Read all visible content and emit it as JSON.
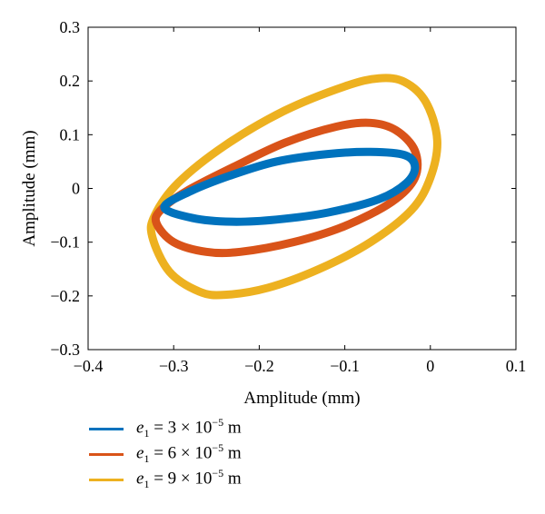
{
  "chart_data": {
    "type": "line",
    "title": "",
    "xlabel": "Amplitude (mm)",
    "ylabel": "Amplitude (mm)",
    "xlim": [
      -0.4,
      0.1
    ],
    "ylim": [
      -0.3,
      0.3
    ],
    "xticks": [
      -0.4,
      -0.3,
      -0.2,
      -0.1,
      0,
      0.1
    ],
    "yticks": [
      -0.3,
      -0.2,
      -0.1,
      0,
      0.1,
      0.2,
      0.3
    ],
    "xtick_labels": [
      "−0.4",
      "−0.3",
      "−0.2",
      "−0.1",
      "0",
      "0.1"
    ],
    "ytick_labels": [
      "−0.3",
      "−0.2",
      "−0.1",
      "0",
      "0.1",
      "0.2",
      "0.3"
    ],
    "grid": false,
    "legend_position": "below",
    "series": [
      {
        "name": "e1 = 3 × 10⁻⁵ m",
        "color": "#0072BD",
        "x": [
          -0.311,
          -0.278,
          -0.232,
          -0.18,
          -0.12,
          -0.06,
          -0.028,
          -0.018,
          -0.03,
          -0.07,
          -0.12,
          -0.18,
          -0.232,
          -0.28,
          -0.311
        ],
        "y": [
          -0.035,
          -0.055,
          -0.062,
          -0.058,
          -0.045,
          -0.02,
          0.01,
          0.04,
          0.062,
          0.068,
          0.064,
          0.05,
          0.025,
          -0.005,
          -0.035
        ]
      },
      {
        "name": "e1 = 6 × 10⁻⁵ m",
        "color": "#D95319",
        "x": [
          -0.32,
          -0.3,
          -0.262,
          -0.222,
          -0.16,
          -0.1,
          -0.045,
          -0.018,
          -0.018,
          -0.04,
          -0.07,
          -0.11,
          -0.17,
          -0.23,
          -0.285,
          -0.315,
          -0.32
        ],
        "y": [
          -0.065,
          -0.1,
          -0.118,
          -0.118,
          -0.1,
          -0.07,
          -0.025,
          0.02,
          0.07,
          0.108,
          0.122,
          0.115,
          0.085,
          0.04,
          -0.005,
          -0.04,
          -0.065
        ]
      },
      {
        "name": "e1 = 9 × 10⁻⁵ m",
        "color": "#EDB120",
        "x": [
          -0.325,
          -0.305,
          -0.27,
          -0.24,
          -0.19,
          -0.13,
          -0.07,
          -0.022,
          0.0,
          0.008,
          -0.005,
          -0.03,
          -0.06,
          -0.1,
          -0.17,
          -0.24,
          -0.295,
          -0.322,
          -0.325
        ],
        "y": [
          -0.09,
          -0.155,
          -0.192,
          -0.198,
          -0.185,
          -0.15,
          -0.1,
          -0.04,
          0.02,
          0.09,
          0.16,
          0.198,
          0.205,
          0.19,
          0.145,
          0.08,
          0.01,
          -0.05,
          -0.09
        ]
      }
    ]
  },
  "legend": {
    "items": [
      {
        "var": "e",
        "sub": "1",
        "prefix": " = 3 × 10",
        "sup": "−5",
        "suffix": " m",
        "color": "#0072BD"
      },
      {
        "var": "e",
        "sub": "1",
        "prefix": " = 6 × 10",
        "sup": "−5",
        "suffix": " m",
        "color": "#D95319"
      },
      {
        "var": "e",
        "sub": "1",
        "prefix": " = 9 × 10",
        "sup": "−5",
        "suffix": " m",
        "color": "#EDB120"
      }
    ]
  }
}
